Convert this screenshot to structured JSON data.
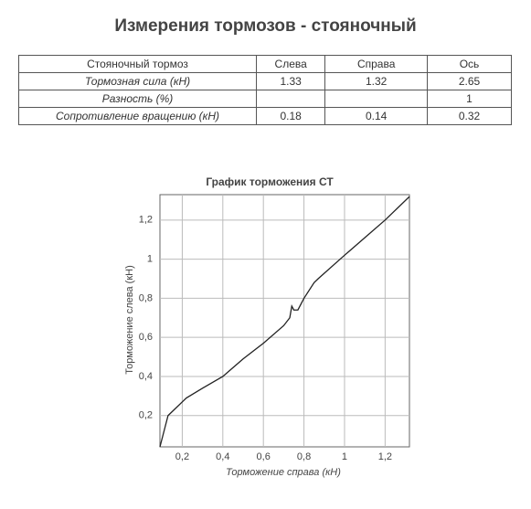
{
  "header": {
    "title": "Измерения тормозов - стояночный"
  },
  "table": {
    "columns": [
      "Стояночный тормоз",
      "Слева",
      "Справа",
      "Ось"
    ],
    "rows": [
      [
        "Тормозная сила (кН)",
        "1.33",
        "1.32",
        "2.65"
      ],
      [
        "Разность (%)",
        null,
        null,
        "1"
      ],
      [
        "Сопротивление вращению (кН)",
        "0.18",
        "0.14",
        "0.32"
      ]
    ]
  },
  "chart_data": {
    "type": "line",
    "title": "График торможения СТ",
    "x_label": "Торможение справа (кН)",
    "y_label": "Торможение слева (кН)",
    "x": [
      0.09,
      0.11,
      0.13,
      0.16,
      0.2,
      0.22,
      0.3,
      0.4,
      0.5,
      0.6,
      0.7,
      0.73,
      0.74,
      0.75,
      0.77,
      0.8,
      0.85,
      0.87,
      1.0,
      1.2,
      1.32
    ],
    "values": [
      0.04,
      0.12,
      0.2,
      0.23,
      0.27,
      0.29,
      0.34,
      0.4,
      0.49,
      0.57,
      0.66,
      0.7,
      0.76,
      0.74,
      0.74,
      0.8,
      0.88,
      0.9,
      1.02,
      1.2,
      1.32
    ],
    "color": "#222222",
    "xlim": [
      0.09,
      1.32
    ],
    "ylim": [
      0.04,
      1.33
    ],
    "xticks": [
      {
        "value": 0.2,
        "label": "0,2"
      },
      {
        "value": 0.4,
        "label": "0,4"
      },
      {
        "value": 0.6,
        "label": "0,6"
      },
      {
        "value": 0.8,
        "label": "0,8"
      },
      1,
      {
        "value": 1.2,
        "label": "1,2"
      }
    ],
    "yticks": [
      {
        "value": 0.2,
        "label": "0,2"
      },
      {
        "value": 0.4,
        "label": "0,4"
      },
      {
        "value": 0.6,
        "label": "0,6"
      },
      {
        "value": 0.8,
        "label": "0,8"
      },
      1,
      {
        "value": 1.2,
        "label": "1,2"
      }
    ],
    "grid": true
  }
}
